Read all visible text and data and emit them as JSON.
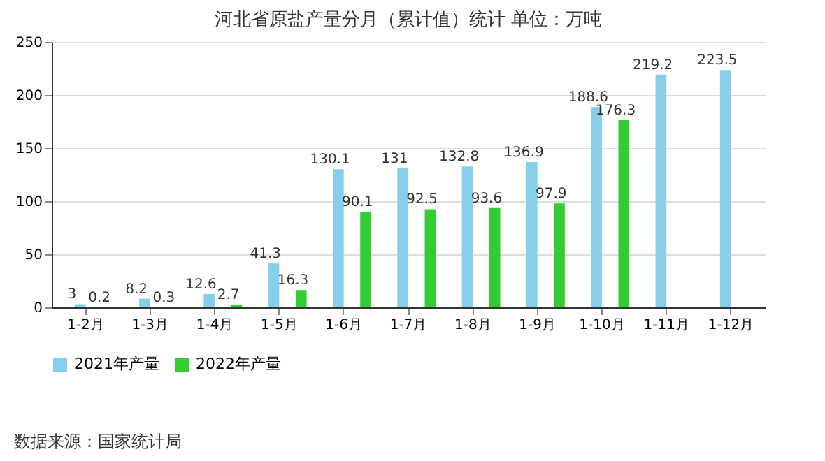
{
  "chart_data": {
    "type": "bar",
    "title": "河北省原盐产量分月（累计值）统计  单位：万吨",
    "categories": [
      "1-2月",
      "1-3月",
      "1-4月",
      "1-5月",
      "1-6月",
      "1-7月",
      "1-8月",
      "1-9月",
      "1-10月",
      "1-11月",
      "1-12月"
    ],
    "series": [
      {
        "name": "2021年产量",
        "color": "#87ceeb",
        "values": [
          3,
          8.2,
          12.6,
          41.3,
          130.1,
          131,
          132.8,
          136.9,
          188.6,
          219.2,
          223.5
        ]
      },
      {
        "name": "2022年产量",
        "color": "#33cc33",
        "values": [
          0.2,
          0.3,
          2.7,
          16.3,
          90.1,
          92.5,
          93.6,
          97.9,
          176.3,
          null,
          null
        ]
      }
    ],
    "ylim": [
      0,
      250
    ],
    "yticks": [
      0,
      50,
      100,
      150,
      200,
      250
    ],
    "grid": "y",
    "legend": "bottom",
    "data_labels": true,
    "annotations": [
      "数据来源：国家统计局"
    ]
  }
}
